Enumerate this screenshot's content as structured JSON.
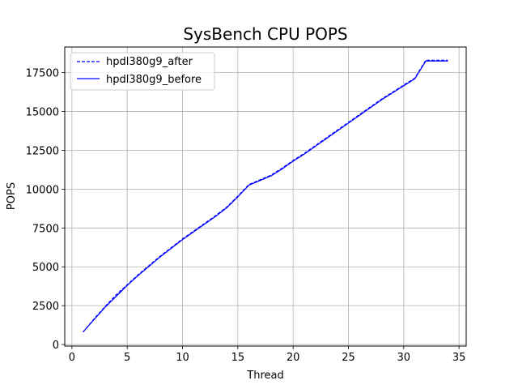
{
  "chart_data": {
    "type": "line",
    "title": "SysBench CPU POPS",
    "xlabel": "Thread",
    "ylabel": "POPS",
    "xlim": [
      -0.65,
      35.65
    ],
    "ylim": [
      -100,
      19150
    ],
    "xticks": [
      0,
      5,
      10,
      15,
      20,
      25,
      30,
      35
    ],
    "yticks": [
      0,
      2500,
      5000,
      7500,
      10000,
      12500,
      15000,
      17500
    ],
    "grid": true,
    "legend_position": "upper left",
    "x": [
      1,
      2,
      3,
      4,
      5,
      6,
      7,
      8,
      9,
      10,
      11,
      12,
      13,
      14,
      15,
      16,
      17,
      18,
      19,
      20,
      21,
      22,
      23,
      24,
      25,
      26,
      27,
      28,
      29,
      30,
      31,
      32,
      33,
      34
    ],
    "series": [
      {
        "name": "hpdl380g9_after",
        "style": "dashed",
        "color": "#0000ff",
        "values": [
          800,
          1650,
          2450,
          3200,
          3850,
          4500,
          5100,
          5700,
          6250,
          6800,
          7300,
          7800,
          8300,
          8850,
          9550,
          10300,
          10600,
          10900,
          11350,
          11850,
          12300,
          12800,
          13300,
          13800,
          14300,
          14800,
          15300,
          15800,
          16250,
          16700,
          17150,
          18300,
          18300,
          18300
        ]
      },
      {
        "name": "hpdl380g9_before",
        "style": "solid",
        "color": "#0000ff",
        "values": [
          800,
          1600,
          2400,
          3100,
          3800,
          4450,
          5050,
          5650,
          6200,
          6750,
          7250,
          7750,
          8250,
          8800,
          9500,
          10250,
          10550,
          10850,
          11300,
          11800,
          12250,
          12750,
          13250,
          13750,
          14250,
          14750,
          15250,
          15750,
          16200,
          16650,
          17100,
          18250,
          18250,
          18250
        ]
      }
    ]
  }
}
